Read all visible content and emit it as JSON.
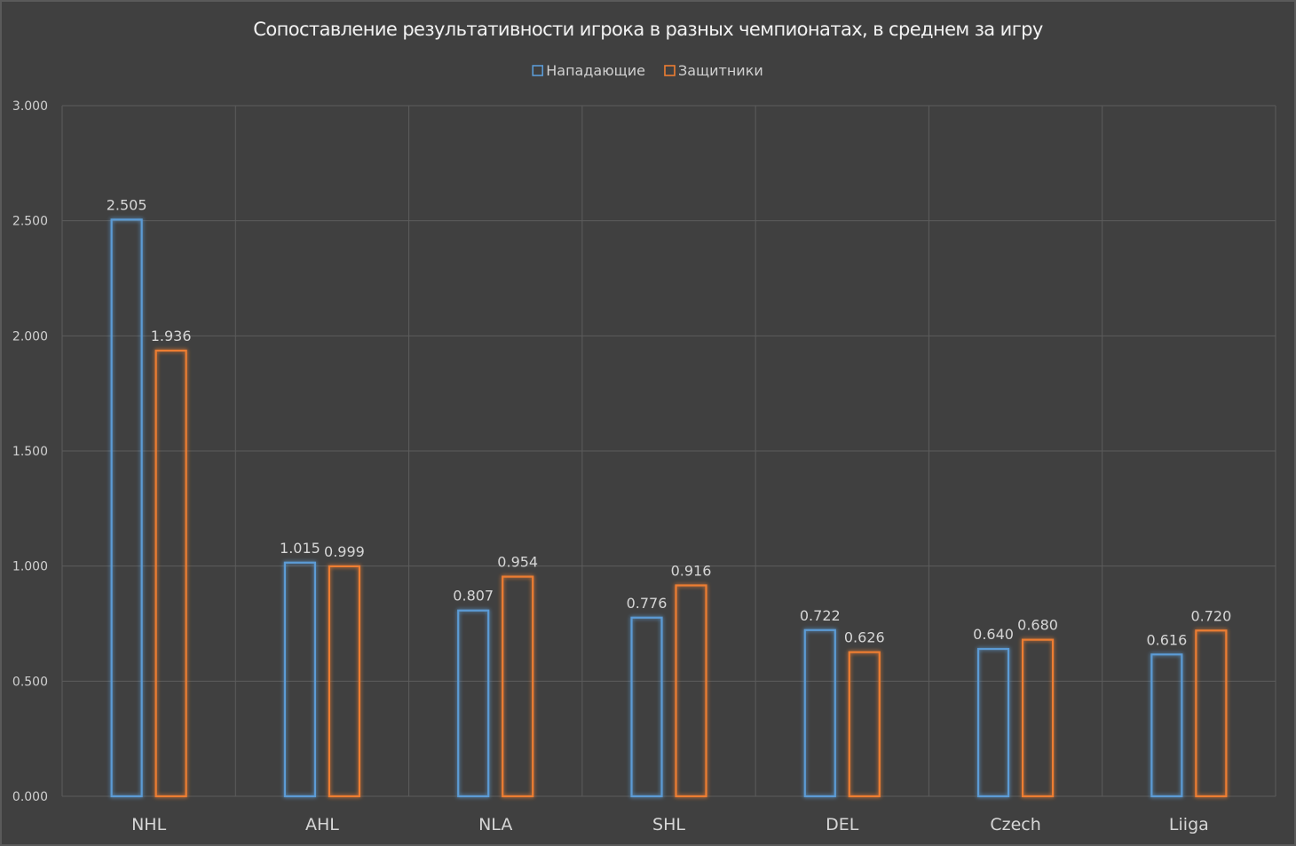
{
  "chart_data": {
    "type": "bar",
    "title": "Сопоставление результативности игрока в разных чемпионатах, в среднем за игру",
    "categories": [
      "NHL",
      "AHL",
      "NLA",
      "SHL",
      "DEL",
      "Czech",
      "Liiga"
    ],
    "series": [
      {
        "name": "Нападающие",
        "color": "#5b9bd5",
        "values": [
          2.505,
          1.015,
          0.807,
          0.776,
          0.722,
          0.64,
          0.616
        ],
        "labels": [
          "2.505",
          "1.015",
          "0.807",
          "0.776",
          "0.722",
          "0.640",
          "0.616"
        ]
      },
      {
        "name": "Защитники",
        "color": "#ed7d31",
        "values": [
          1.936,
          0.999,
          0.954,
          0.916,
          0.626,
          0.68,
          0.72
        ],
        "labels": [
          "1.936",
          "0.999",
          "0.954",
          "0.916",
          "0.626",
          "0.680",
          "0.720"
        ]
      }
    ],
    "yticks": [
      "0.000",
      "0.500",
      "1.000",
      "1.500",
      "2.000",
      "2.500",
      "3.000"
    ],
    "ylim": [
      0,
      3
    ],
    "grid": true,
    "legend": "top-center"
  }
}
